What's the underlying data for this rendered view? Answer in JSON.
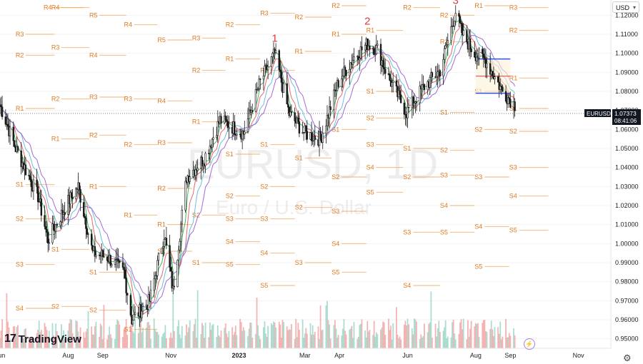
{
  "app": {
    "brand": "TradingView",
    "currency_selector": "USD",
    "symbol_watermark": "EURUSD, 1D",
    "description_watermark": "Euro / U.S. Dollar"
  },
  "price_scale": {
    "ticks": [
      "1.12000",
      "1.11000",
      "1.10000",
      "1.09000",
      "1.08000",
      "1.07000",
      "1.06000",
      "1.05000",
      "1.04000",
      "1.03000",
      "1.02000",
      "1.01000",
      "1.00000",
      "0.99000",
      "0.98000",
      "0.97000",
      "0.96000",
      "0.95000"
    ],
    "last_price_symbol": "EURUSD",
    "last_price": "1.07373",
    "countdown": "08:41:06"
  },
  "time_scale": {
    "ticks": [
      "Jun",
      "Aug",
      "Sep",
      "Nov",
      "2023",
      "Mar",
      "Apr",
      "Jun",
      "Aug",
      "Sep",
      "Nov"
    ]
  },
  "colors": {
    "candle": "#1a1a1a",
    "pivot": "#f0a04b",
    "wave_label": "#e03a3a",
    "ma_fast": "#2eab4a",
    "ma_mid": "#e8575e",
    "ma_slow": "#5ab8d6",
    "ma_purple": "#9b59d0",
    "volume_up": "#9fd6c9",
    "volume_down": "#f2a7a7",
    "fib_box": "#2f54eb"
  },
  "chart_data": {
    "type": "candlestick",
    "title": "EURUSD, 1D",
    "subtitle": "Euro / U.S. Dollar",
    "x_range": [
      "2022-06-01",
      "2023-11-30"
    ],
    "ylim": [
      0.945,
      1.128
    ],
    "close_anchors": [
      {
        "date": "2022-06-01",
        "close": 1.073
      },
      {
        "date": "2022-06-15",
        "close": 1.05
      },
      {
        "date": "2022-07-05",
        "close": 1.025
      },
      {
        "date": "2022-07-14",
        "close": 1.002
      },
      {
        "date": "2022-08-01",
        "close": 1.022
      },
      {
        "date": "2022-08-10",
        "close": 1.03
      },
      {
        "date": "2022-08-23",
        "close": 0.995
      },
      {
        "date": "2022-09-05",
        "close": 0.993
      },
      {
        "date": "2022-09-20",
        "close": 0.985
      },
      {
        "date": "2022-09-27",
        "close": 0.96
      },
      {
        "date": "2022-10-13",
        "close": 0.97
      },
      {
        "date": "2022-10-26",
        "close": 1.005
      },
      {
        "date": "2022-11-03",
        "close": 0.975
      },
      {
        "date": "2022-11-15",
        "close": 1.035
      },
      {
        "date": "2022-12-01",
        "close": 1.045
      },
      {
        "date": "2022-12-15",
        "close": 1.065
      },
      {
        "date": "2023-01-05",
        "close": 1.058
      },
      {
        "date": "2023-01-20",
        "close": 1.085
      },
      {
        "date": "2023-02-02",
        "close": 1.1
      },
      {
        "date": "2023-02-15",
        "close": 1.068
      },
      {
        "date": "2023-03-01",
        "close": 1.058
      },
      {
        "date": "2023-03-15",
        "close": 1.055
      },
      {
        "date": "2023-03-31",
        "close": 1.085
      },
      {
        "date": "2023-04-14",
        "close": 1.098
      },
      {
        "date": "2023-04-26",
        "close": 1.105
      },
      {
        "date": "2023-05-05",
        "close": 1.102
      },
      {
        "date": "2023-05-15",
        "close": 1.087
      },
      {
        "date": "2023-05-31",
        "close": 1.069
      },
      {
        "date": "2023-06-15",
        "close": 1.082
      },
      {
        "date": "2023-06-30",
        "close": 1.091
      },
      {
        "date": "2023-07-14",
        "close": 1.122
      },
      {
        "date": "2023-07-20",
        "close": 1.11
      },
      {
        "date": "2023-07-31",
        "close": 1.1
      },
      {
        "date": "2023-08-10",
        "close": 1.096
      },
      {
        "date": "2023-08-25",
        "close": 1.08
      },
      {
        "date": "2023-09-05",
        "close": 1.073
      }
    ],
    "wave_labels": [
      {
        "label": "1",
        "date": "2023-02-02",
        "price": 1.106
      },
      {
        "label": "2",
        "date": "2023-04-26",
        "price": 1.115
      },
      {
        "label": "3",
        "date": "2023-07-14",
        "price": 1.126
      }
    ],
    "moving_averages": [
      "ma_fast",
      "ma_mid",
      "ma_slow",
      "ma_purple"
    ],
    "pivot_levels": [
      {
        "label": "R4",
        "price": 1.124,
        "x1": "2022-07-10",
        "x2": "2022-08-15"
      },
      {
        "label": "R1",
        "price": 1.071,
        "x1": "2022-06-15",
        "x2": "2022-07-20"
      },
      {
        "label": "R2",
        "price": 1.099,
        "x1": "2022-06-15",
        "x2": "2022-07-20"
      },
      {
        "label": "R3",
        "price": 1.11,
        "x1": "2022-06-15",
        "x2": "2022-07-20"
      },
      {
        "label": "S1",
        "price": 1.031,
        "x1": "2022-06-15",
        "x2": "2022-07-20"
      },
      {
        "label": "S2",
        "price": 1.013,
        "x1": "2022-06-15",
        "x2": "2022-07-20"
      },
      {
        "label": "S3",
        "price": 0.989,
        "x1": "2022-06-15",
        "x2": "2022-07-20"
      },
      {
        "label": "S4",
        "price": 0.966,
        "x1": "2022-06-15",
        "x2": "2022-07-20"
      },
      {
        "label": "R4",
        "price": 1.124,
        "x1": "2022-07-17",
        "x2": "2022-08-20"
      },
      {
        "label": "R3",
        "price": 1.103,
        "x1": "2022-07-17",
        "x2": "2022-08-20"
      },
      {
        "label": "R2",
        "price": 1.076,
        "x1": "2022-07-17",
        "x2": "2022-08-20"
      },
      {
        "label": "R1",
        "price": 1.055,
        "x1": "2022-07-17",
        "x2": "2022-08-20"
      },
      {
        "label": "S1",
        "price": 0.997,
        "x1": "2022-07-17",
        "x2": "2022-08-20"
      },
      {
        "label": "S2",
        "price": 0.967,
        "x1": "2022-07-17",
        "x2": "2022-08-20"
      },
      {
        "label": "R5",
        "price": 1.12,
        "x1": "2022-08-20",
        "x2": "2022-09-22"
      },
      {
        "label": "R4",
        "price": 1.099,
        "x1": "2022-08-20",
        "x2": "2022-09-22"
      },
      {
        "label": "R3",
        "price": 1.077,
        "x1": "2022-08-20",
        "x2": "2022-09-22"
      },
      {
        "label": "R2",
        "price": 1.057,
        "x1": "2022-08-20",
        "x2": "2022-09-22"
      },
      {
        "label": "R1",
        "price": 1.03,
        "x1": "2022-08-20",
        "x2": "2022-09-22"
      },
      {
        "label": "S1",
        "price": 0.985,
        "x1": "2022-08-20",
        "x2": "2022-09-22"
      },
      {
        "label": "S2",
        "price": 0.965,
        "x1": "2022-08-20",
        "x2": "2022-09-22"
      },
      {
        "label": "R4",
        "price": 1.115,
        "x1": "2022-09-20",
        "x2": "2022-10-20"
      },
      {
        "label": "R3",
        "price": 1.076,
        "x1": "2022-09-20",
        "x2": "2022-10-20"
      },
      {
        "label": "R2",
        "price": 1.052,
        "x1": "2022-09-20",
        "x2": "2022-10-20"
      },
      {
        "label": "R1",
        "price": 1.015,
        "x1": "2022-09-20",
        "x2": "2022-10-20"
      },
      {
        "label": "S1",
        "price": 0.955,
        "x1": "2022-09-20",
        "x2": "2022-10-20"
      },
      {
        "label": "R5",
        "price": 1.107,
        "x1": "2022-10-20",
        "x2": "2022-11-20"
      },
      {
        "label": "R4",
        "price": 1.075,
        "x1": "2022-10-20",
        "x2": "2022-11-20"
      },
      {
        "label": "R3",
        "price": 1.053,
        "x1": "2022-10-20",
        "x2": "2022-11-20"
      },
      {
        "label": "R2",
        "price": 1.029,
        "x1": "2022-10-20",
        "x2": "2022-11-20"
      },
      {
        "label": "R1",
        "price": 1.01,
        "x1": "2022-10-20",
        "x2": "2022-11-20"
      },
      {
        "label": "S1",
        "price": 0.996,
        "x1": "2022-10-20",
        "x2": "2022-11-20"
      },
      {
        "label": "R3",
        "price": 1.108,
        "x1": "2022-11-20",
        "x2": "2022-12-20"
      },
      {
        "label": "R2",
        "price": 1.091,
        "x1": "2022-11-20",
        "x2": "2022-12-20"
      },
      {
        "label": "R1",
        "price": 1.064,
        "x1": "2022-11-20",
        "x2": "2022-12-20"
      },
      {
        "label": "S1",
        "price": 0.99,
        "x1": "2022-11-20",
        "x2": "2022-12-20"
      },
      {
        "label": "S2",
        "price": 1.015,
        "x1": "2022-11-20",
        "x2": "2022-12-20"
      },
      {
        "label": "R2",
        "price": 1.115,
        "x1": "2022-12-20",
        "x2": "2023-01-20"
      },
      {
        "label": "R1",
        "price": 1.097,
        "x1": "2022-12-20",
        "x2": "2023-01-20"
      },
      {
        "label": "S1",
        "price": 1.047,
        "x1": "2022-12-20",
        "x2": "2023-01-20"
      },
      {
        "label": "S2",
        "price": 1.025,
        "x1": "2022-12-20",
        "x2": "2023-01-20"
      },
      {
        "label": "S3",
        "price": 1.013,
        "x1": "2022-12-20",
        "x2": "2023-01-20"
      },
      {
        "label": "S4",
        "price": 1.001,
        "x1": "2022-12-20",
        "x2": "2023-01-20"
      },
      {
        "label": "S5",
        "price": 0.989,
        "x1": "2022-12-20",
        "x2": "2023-01-20"
      },
      {
        "label": "R3",
        "price": 1.121,
        "x1": "2023-01-20",
        "x2": "2023-02-20"
      },
      {
        "label": "R1",
        "price": 1.091,
        "x1": "2023-01-20",
        "x2": "2023-02-20"
      },
      {
        "label": "S1",
        "price": 1.052,
        "x1": "2023-01-20",
        "x2": "2023-02-20"
      },
      {
        "label": "S2",
        "price": 1.03,
        "x1": "2023-01-20",
        "x2": "2023-02-20"
      },
      {
        "label": "S3",
        "price": 1.013,
        "x1": "2023-01-20",
        "x2": "2023-02-20"
      },
      {
        "label": "S4",
        "price": 0.995,
        "x1": "2023-01-20",
        "x2": "2023-02-20"
      },
      {
        "label": "S5",
        "price": 0.978,
        "x1": "2023-01-20",
        "x2": "2023-02-20"
      },
      {
        "label": "R2",
        "price": 1.119,
        "x1": "2023-02-20",
        "x2": "2023-03-25"
      },
      {
        "label": "R1",
        "price": 1.101,
        "x1": "2023-02-20",
        "x2": "2023-03-25"
      },
      {
        "label": "S1",
        "price": 1.045,
        "x1": "2023-02-20",
        "x2": "2023-03-25"
      },
      {
        "label": "S2",
        "price": 1.019,
        "x1": "2023-02-20",
        "x2": "2023-03-25"
      },
      {
        "label": "S3",
        "price": 0.99,
        "x1": "2023-02-20",
        "x2": "2023-03-25"
      },
      {
        "label": "R2",
        "price": 1.125,
        "x1": "2023-03-25",
        "x2": "2023-04-25"
      },
      {
        "label": "R1",
        "price": 1.11,
        "x1": "2023-03-25",
        "x2": "2023-04-25"
      },
      {
        "label": "S1",
        "price": 1.06,
        "x1": "2023-03-25",
        "x2": "2023-04-25"
      },
      {
        "label": "S2",
        "price": 1.035,
        "x1": "2023-03-25",
        "x2": "2023-04-25"
      },
      {
        "label": "S3",
        "price": 1.017,
        "x1": "2023-03-25",
        "x2": "2023-04-25"
      },
      {
        "label": "S4",
        "price": 1.0,
        "x1": "2023-03-25",
        "x2": "2023-04-25"
      },
      {
        "label": "S5",
        "price": 0.985,
        "x1": "2023-03-25",
        "x2": "2023-04-25"
      },
      {
        "label": "R1",
        "price": 1.112,
        "x1": "2023-04-25",
        "x2": "2023-05-28"
      },
      {
        "label": "S1",
        "price": 1.08,
        "x1": "2023-04-25",
        "x2": "2023-05-28"
      },
      {
        "label": "S2",
        "price": 1.066,
        "x1": "2023-04-25",
        "x2": "2023-05-28"
      },
      {
        "label": "S3",
        "price": 1.052,
        "x1": "2023-04-25",
        "x2": "2023-05-28"
      },
      {
        "label": "S4",
        "price": 1.04,
        "x1": "2023-04-25",
        "x2": "2023-05-28"
      },
      {
        "label": "S5",
        "price": 1.027,
        "x1": "2023-04-25",
        "x2": "2023-05-28"
      },
      {
        "label": "R2",
        "price": 1.124,
        "x1": "2023-05-28",
        "x2": "2023-06-30"
      },
      {
        "label": "S1",
        "price": 1.05,
        "x1": "2023-05-28",
        "x2": "2023-06-30"
      },
      {
        "label": "S2",
        "price": 1.035,
        "x1": "2023-05-28",
        "x2": "2023-06-30"
      },
      {
        "label": "S3",
        "price": 1.006,
        "x1": "2023-05-28",
        "x2": "2023-06-30"
      },
      {
        "label": "S4",
        "price": 0.978,
        "x1": "2023-05-28",
        "x2": "2023-06-30"
      },
      {
        "label": "R2",
        "price": 1.12,
        "x1": "2023-06-30",
        "x2": "2023-07-31"
      },
      {
        "label": "R1",
        "price": 1.106,
        "x1": "2023-06-30",
        "x2": "2023-07-31"
      },
      {
        "label": "S1",
        "price": 1.069,
        "x1": "2023-06-30",
        "x2": "2023-07-31"
      },
      {
        "label": "S2",
        "price": 1.049,
        "x1": "2023-06-30",
        "x2": "2023-07-31"
      },
      {
        "label": "S3",
        "price": 1.036,
        "x1": "2023-06-30",
        "x2": "2023-07-31"
      },
      {
        "label": "S4",
        "price": 1.02,
        "x1": "2023-06-30",
        "x2": "2023-07-31"
      },
      {
        "label": "S5",
        "price": 1.006,
        "x1": "2023-06-30",
        "x2": "2023-07-31"
      },
      {
        "label": "R1",
        "price": 1.125,
        "x1": "2023-07-31",
        "x2": "2023-08-31"
      },
      {
        "label": "S1",
        "price": 1.08,
        "x1": "2023-07-31",
        "x2": "2023-08-31"
      },
      {
        "label": "S2",
        "price": 1.06,
        "x1": "2023-07-31",
        "x2": "2023-08-31"
      },
      {
        "label": "S3",
        "price": 1.035,
        "x1": "2023-07-31",
        "x2": "2023-08-31"
      },
      {
        "label": "S4",
        "price": 1.009,
        "x1": "2023-07-31",
        "x2": "2023-08-31"
      },
      {
        "label": "S5",
        "price": 0.988,
        "x1": "2023-07-31",
        "x2": "2023-08-31"
      },
      {
        "label": "R3",
        "price": 1.124,
        "x1": "2023-08-31",
        "x2": "2023-10-05"
      },
      {
        "label": "R2",
        "price": 1.112,
        "x1": "2023-08-31",
        "x2": "2023-10-05"
      },
      {
        "label": "R1",
        "price": 1.087,
        "x1": "2023-08-31",
        "x2": "2023-10-05"
      },
      {
        "label": "S1",
        "price": 1.071,
        "x1": "2023-08-31",
        "x2": "2023-10-05"
      },
      {
        "label": "S2",
        "price": 1.059,
        "x1": "2023-08-31",
        "x2": "2023-10-05"
      },
      {
        "label": "S3",
        "price": 1.04,
        "x1": "2023-08-31",
        "x2": "2023-10-05"
      },
      {
        "label": "S4",
        "price": 1.025,
        "x1": "2023-08-31",
        "x2": "2023-10-05"
      },
      {
        "label": "S5",
        "price": 1.007,
        "x1": "2023-08-31",
        "x2": "2023-10-05"
      }
    ]
  }
}
